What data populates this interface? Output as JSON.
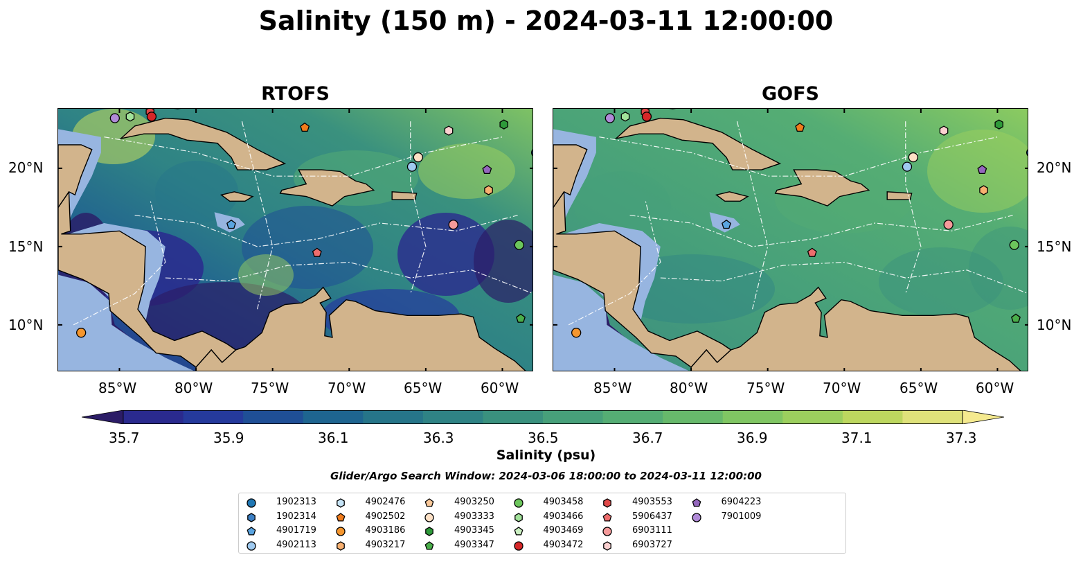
{
  "title": "Salinity (150 m) - 2024-03-11 12:00:00",
  "panels": [
    {
      "name": "RTOFS",
      "palette": "variable"
    },
    {
      "name": "GOFS",
      "palette": "smooth"
    }
  ],
  "lon_labels": [
    "85°W",
    "80°W",
    "75°W",
    "70°W",
    "65°W",
    "60°W"
  ],
  "lat_labels": [
    "20°N",
    "15°N",
    "10°N"
  ],
  "colorbar": {
    "title": "Salinity (psu)",
    "tick_labels": [
      "35.7",
      "35.9",
      "36.1",
      "36.3",
      "36.5",
      "36.7",
      "36.9",
      "37.1",
      "37.3"
    ],
    "colors": [
      "#2b1c66",
      "#2a2a8e",
      "#253a9c",
      "#1f4f96",
      "#1e6590",
      "#267589",
      "#2f8385",
      "#3a917e",
      "#47a07a",
      "#55ad74",
      "#67b96b",
      "#80c663",
      "#9ccf5e",
      "#bdd75f",
      "#dfe27a",
      "#f5ea8f"
    ]
  },
  "search_window": "Glider/Argo Search Window: 2024-03-06 18:00:00 to 2024-03-11 12:00:00",
  "legend": [
    {
      "id": "1902313",
      "marker": "circle",
      "color": "#1f77b4"
    },
    {
      "id": "1902314",
      "marker": "hexagon",
      "color": "#3b7fc4"
    },
    {
      "id": "4901719",
      "marker": "pentagon",
      "color": "#5aa4e0"
    },
    {
      "id": "4902113",
      "marker": "circle",
      "color": "#9fcaf0"
    },
    {
      "id": "4902476",
      "marker": "hexagon",
      "color": "#c6e4f7"
    },
    {
      "id": "4902502",
      "marker": "pentagon",
      "color": "#f07c1c"
    },
    {
      "id": "4903186",
      "marker": "circle",
      "color": "#f5962e"
    },
    {
      "id": "4903217",
      "marker": "hexagon",
      "color": "#f8b070"
    },
    {
      "id": "4903250",
      "marker": "pentagon",
      "color": "#fbc99a"
    },
    {
      "id": "4903333",
      "marker": "circle",
      "color": "#fde0c5"
    },
    {
      "id": "4903345",
      "marker": "hexagon",
      "color": "#2e9a3a"
    },
    {
      "id": "4903347",
      "marker": "pentagon",
      "color": "#4aae4a"
    },
    {
      "id": "4903458",
      "marker": "circle",
      "color": "#6cc65c"
    },
    {
      "id": "4903466",
      "marker": "hexagon",
      "color": "#a2e29a"
    },
    {
      "id": "4903469",
      "marker": "pentagon",
      "color": "#cbf0c2"
    },
    {
      "id": "4903472",
      "marker": "circle",
      "color": "#d62728"
    },
    {
      "id": "4903553",
      "marker": "hexagon",
      "color": "#e04848"
    },
    {
      "id": "5906437",
      "marker": "pentagon",
      "color": "#ee6d6d"
    },
    {
      "id": "6903111",
      "marker": "circle",
      "color": "#f59a9a"
    },
    {
      "id": "6903727",
      "marker": "hexagon",
      "color": "#fbd0d0"
    },
    {
      "id": "6904223",
      "marker": "pentagon",
      "color": "#9467bd"
    },
    {
      "id": "7901009",
      "marker": "circle",
      "color": "#b08ad8"
    }
  ],
  "floats": [
    {
      "id": "7901009",
      "lon": -85.3,
      "lat": 23.2
    },
    {
      "id": "4903466",
      "lon": -84.3,
      "lat": 23.3
    },
    {
      "id": "4903553",
      "lon": -83.0,
      "lat": 23.6
    },
    {
      "id": "4903472",
      "lon": -82.9,
      "lat": 23.3
    },
    {
      "id": "4902502",
      "lon": -72.9,
      "lat": 22.6
    },
    {
      "id": "6903727",
      "lon": -63.5,
      "lat": 22.4
    },
    {
      "id": "4903345",
      "lon": -59.9,
      "lat": 22.8
    },
    {
      "id": "1902313",
      "lon": -57.8,
      "lat": 21.0
    },
    {
      "id": "4903333",
      "lon": -65.5,
      "lat": 20.7
    },
    {
      "id": "4902113",
      "lon": -65.9,
      "lat": 20.1
    },
    {
      "id": "6904223",
      "lon": -61.0,
      "lat": 19.9
    },
    {
      "id": "4903217",
      "lon": -60.9,
      "lat": 18.6
    },
    {
      "id": "4901719",
      "lon": -77.7,
      "lat": 16.4
    },
    {
      "id": "6903111",
      "lon": -63.2,
      "lat": 16.4
    },
    {
      "id": "4903458",
      "lon": -58.9,
      "lat": 15.1
    },
    {
      "id": "5906437",
      "lon": -72.1,
      "lat": 14.6
    },
    {
      "id": "4903347",
      "lon": -58.8,
      "lat": 10.4
    },
    {
      "id": "4903186",
      "lon": -87.5,
      "lat": 9.5
    }
  ]
}
